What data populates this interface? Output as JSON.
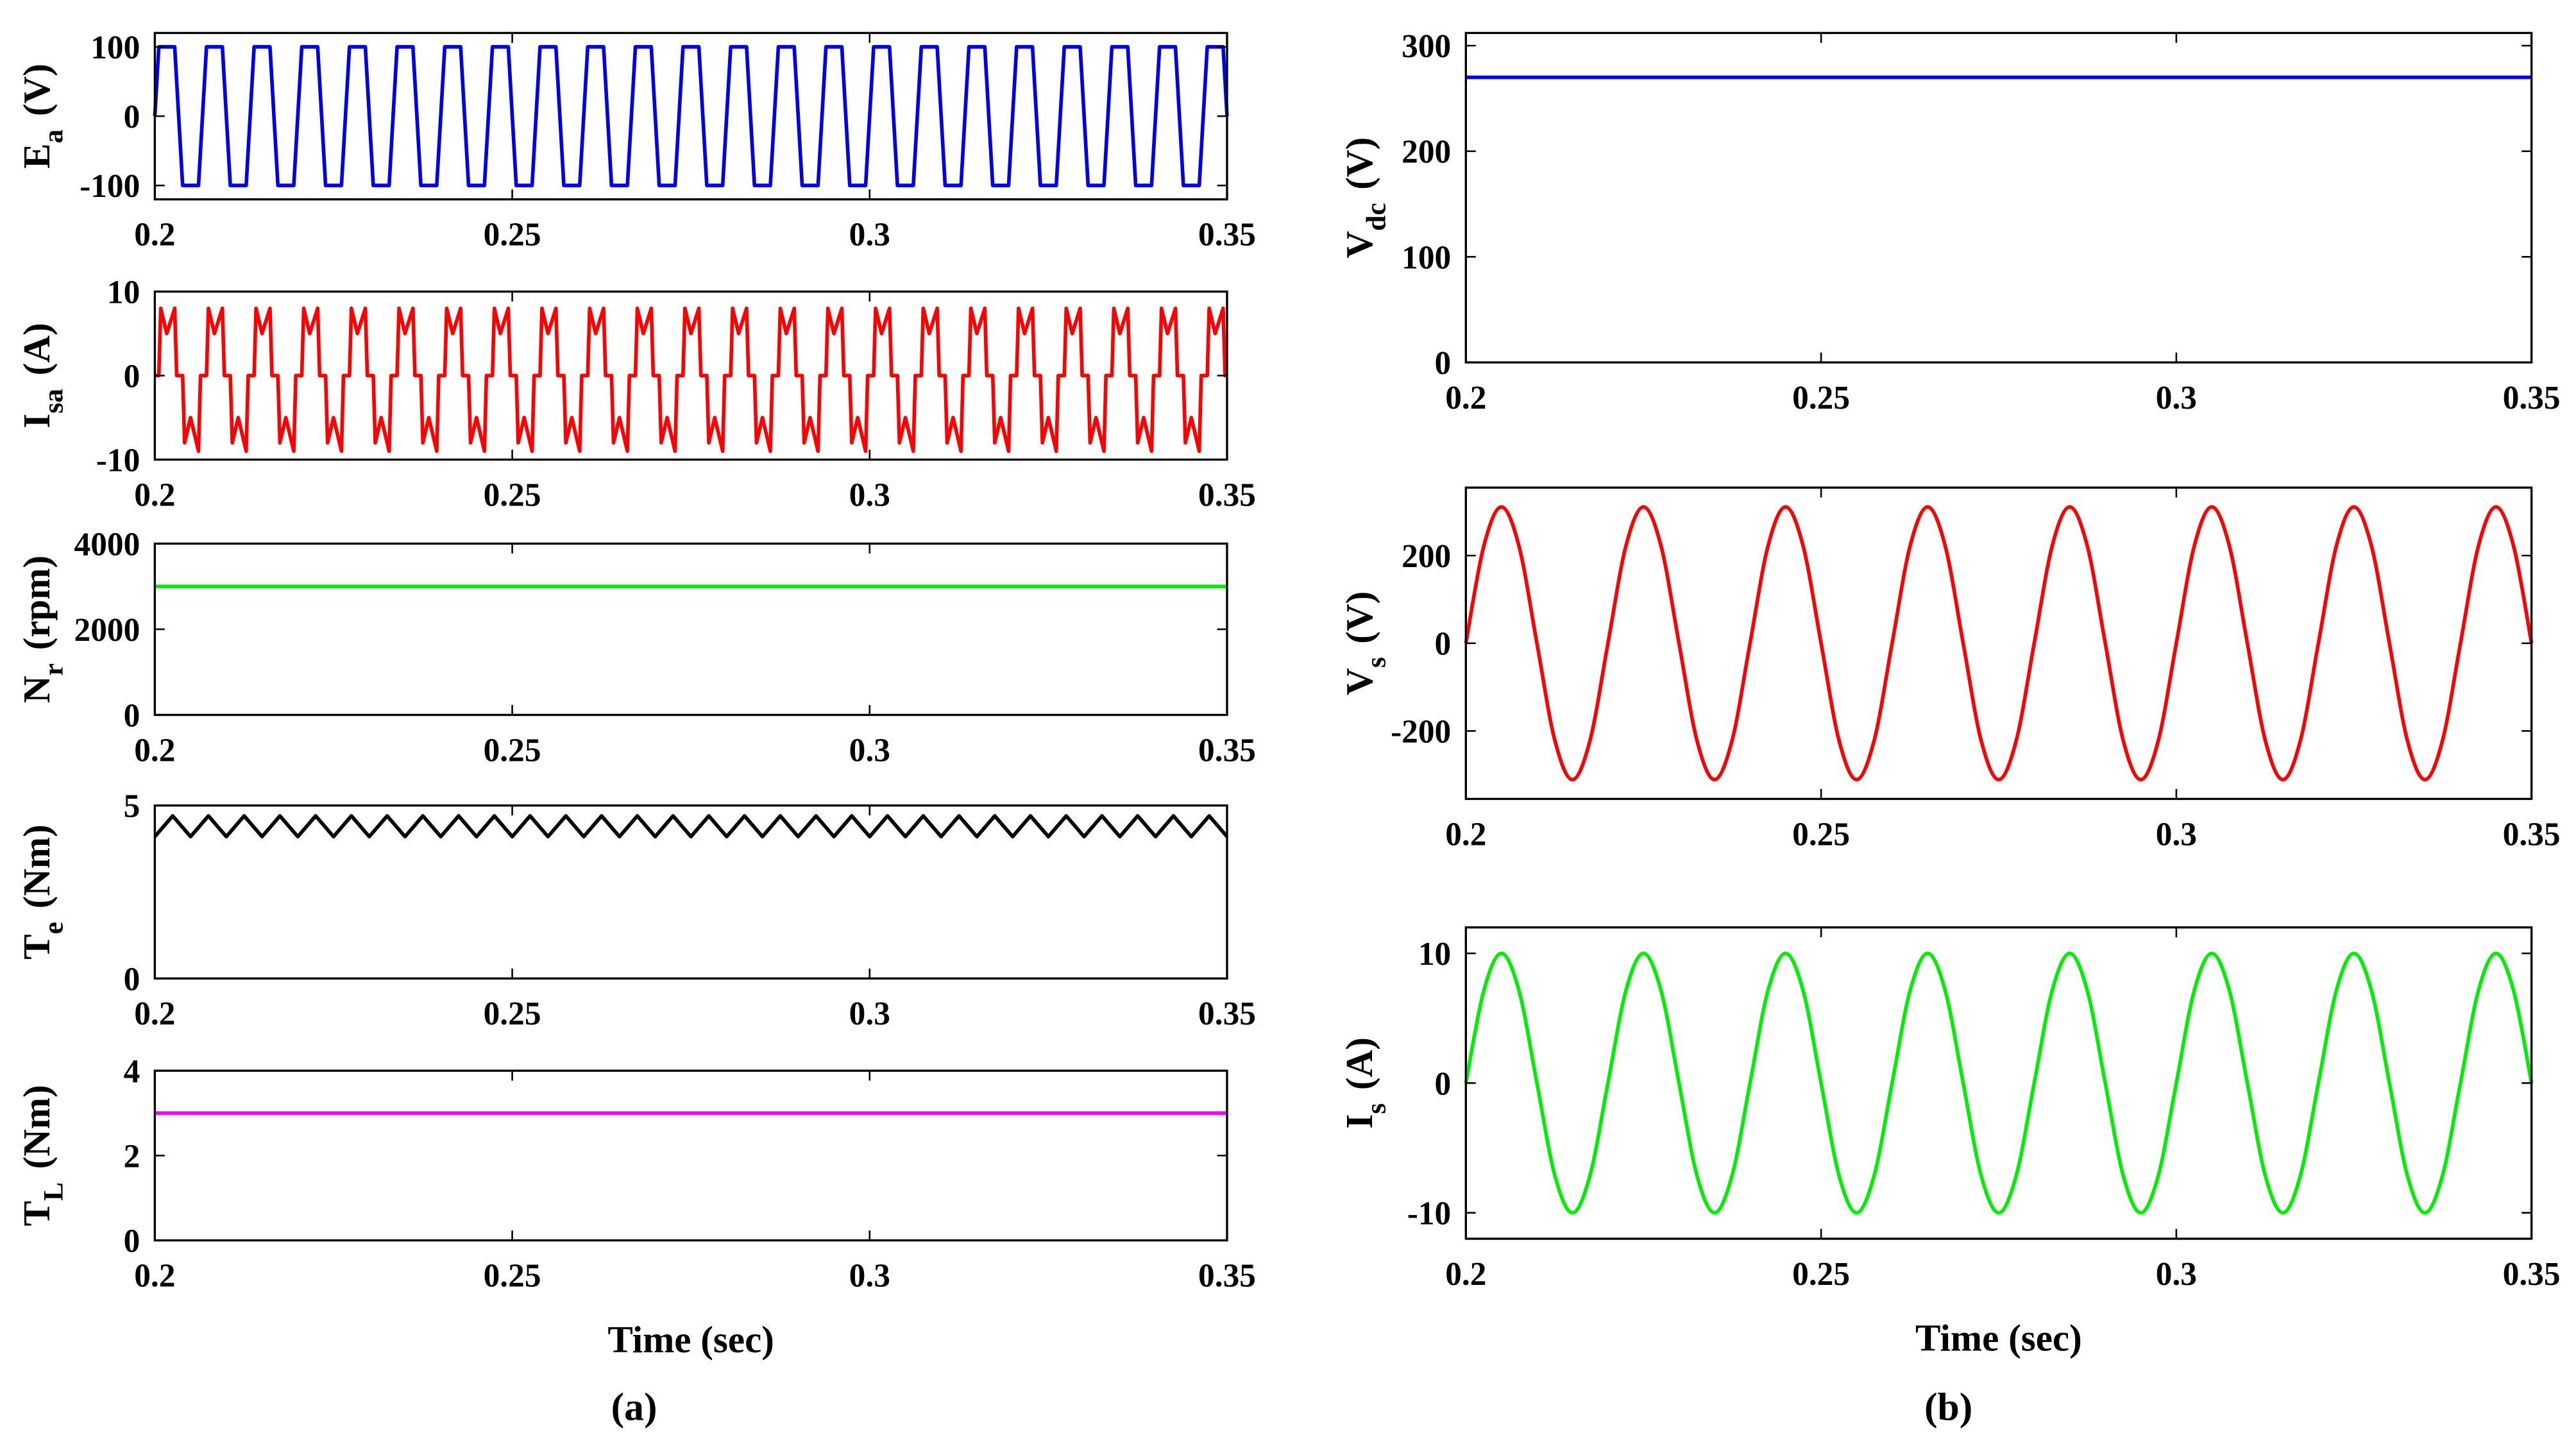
{
  "chart_data": [
    {
      "type": "line",
      "ylabel": {
        "main": "E",
        "sub": "a",
        "unit": "(V)"
      },
      "color": "#0000ee",
      "xlim": [
        0.2,
        0.35
      ],
      "xticks": [
        0.2,
        0.25,
        0.3,
        0.35
      ],
      "ylim": [
        -120,
        120
      ],
      "yticks": [
        -100,
        0,
        100
      ],
      "x": [
        0.2,
        0.20056,
        0.20278,
        0.20389,
        0.20611,
        0.20723,
        0.20945,
        0.21056,
        0.21278,
        0.21389,
        0.21611,
        0.21722,
        0.21944,
        0.22056,
        0.22278,
        0.22389,
        0.22611,
        0.22723,
        0.22945,
        0.23056,
        0.23278,
        0.23389,
        0.23611,
        0.23722,
        0.23944,
        0.24056,
        0.24278,
        0.24389,
        0.24611,
        0.24723,
        0.24945,
        0.25056,
        0.25278,
        0.25389,
        0.25611,
        0.25722,
        0.25944,
        0.26056,
        0.26278,
        0.26389,
        0.26611,
        0.26723,
        0.26945,
        0.27056,
        0.27278,
        0.27389,
        0.27611,
        0.27722,
        0.27944,
        0.28056,
        0.28278,
        0.28389,
        0.28611,
        0.28723,
        0.28945,
        0.29056,
        0.29278,
        0.29389,
        0.29611,
        0.29722,
        0.29944,
        0.30056,
        0.30278,
        0.30389,
        0.30611,
        0.30723,
        0.30945,
        0.31056,
        0.31278,
        0.31389,
        0.31611,
        0.31722,
        0.31944,
        0.32056,
        0.32278,
        0.32389,
        0.32611,
        0.32723,
        0.32945,
        0.33056,
        0.33278,
        0.33389,
        0.33611,
        0.33722,
        0.33944,
        0.34056,
        0.34278,
        0.34389,
        0.34611,
        0.34723,
        0.34945,
        0.35
      ],
      "values": [
        0,
        100,
        100,
        -100,
        -100,
        100,
        100,
        -100,
        -100,
        100,
        100,
        -100,
        -100,
        100,
        100,
        -100,
        -100,
        100,
        100,
        -100,
        -100,
        100,
        100,
        -100,
        -100,
        100,
        100,
        -100,
        -100,
        100,
        100,
        -100,
        -100,
        100,
        100,
        -100,
        -100,
        100,
        100,
        -100,
        -100,
        100,
        100,
        -100,
        -100,
        100,
        100,
        -100,
        -100,
        100,
        100,
        -100,
        -100,
        100,
        100,
        -100,
        -100,
        100,
        100,
        -100,
        -100,
        100,
        100,
        -100,
        -100,
        100,
        100,
        -100,
        -100,
        100,
        100,
        -100,
        -100,
        100,
        100,
        -100,
        -100,
        100,
        100,
        -100,
        -100,
        100,
        100,
        -100,
        -100,
        100,
        100,
        -100,
        -100,
        100,
        100,
        0
      ]
    },
    {
      "type": "line",
      "ylabel": {
        "main": "I",
        "sub": "sa",
        "unit": "(A)"
      },
      "color": "#ff0000",
      "xlim": [
        0.2,
        0.35
      ],
      "xticks": [
        0.2,
        0.25,
        0.3,
        0.35
      ],
      "ylim": [
        -10,
        10
      ],
      "yticks": [
        -10,
        0,
        10
      ],
      "x": [
        0.2,
        0.20056,
        0.20083,
        0.20167,
        0.20278,
        0.20306,
        0.20389,
        0.20417,
        0.205,
        0.20611,
        0.20639,
        0.20723,
        0.2075,
        0.20834,
        0.20945,
        0.20973,
        0.21056,
        0.21084,
        0.21167,
        0.21278,
        0.21306,
        0.21389,
        0.21416,
        0.215,
        0.21611,
        0.21639,
        0.21722,
        0.2175,
        0.21833,
        0.21944,
        0.21972,
        0.22056,
        0.22083,
        0.22167,
        0.22278,
        0.22306,
        0.22389,
        0.22417,
        0.225,
        0.22611,
        0.22639,
        0.22723,
        0.2275,
        0.22834,
        0.22945,
        0.22973,
        0.23056,
        0.23084,
        0.23167,
        0.23278,
        0.23306,
        0.23389,
        0.23416,
        0.235,
        0.23611,
        0.23639,
        0.23722,
        0.2375,
        0.23833,
        0.23944,
        0.23972,
        0.24056,
        0.24083,
        0.24167,
        0.24278,
        0.24306,
        0.24389,
        0.24417,
        0.245,
        0.24611,
        0.24639,
        0.24723,
        0.2475,
        0.24834,
        0.24945,
        0.24973,
        0.25056,
        0.25084,
        0.25167,
        0.25278,
        0.25306,
        0.25389,
        0.25416,
        0.255,
        0.25611,
        0.25639,
        0.25722,
        0.2575,
        0.25833,
        0.25944,
        0.25972,
        0.26056,
        0.26083,
        0.26167,
        0.26278,
        0.26306,
        0.26389,
        0.26417,
        0.265,
        0.26611,
        0.26639,
        0.26723,
        0.2675,
        0.26834,
        0.26945,
        0.26973,
        0.27056,
        0.27084,
        0.27167,
        0.27278,
        0.27306,
        0.27389,
        0.27416,
        0.275,
        0.27611,
        0.27639,
        0.27722,
        0.2775,
        0.27833,
        0.27944,
        0.27972,
        0.28056,
        0.28083,
        0.28167,
        0.28278,
        0.28306,
        0.28389,
        0.28417,
        0.285,
        0.28611,
        0.28639,
        0.28723,
        0.2875,
        0.28834,
        0.28945,
        0.28973,
        0.29056,
        0.29084,
        0.29167,
        0.29278,
        0.29306,
        0.29389,
        0.29416,
        0.295,
        0.29611,
        0.29639,
        0.29722,
        0.2975,
        0.29833,
        0.29944,
        0.29972,
        0.30056,
        0.30083,
        0.30167,
        0.30278,
        0.30306,
        0.30389,
        0.30417,
        0.305,
        0.30611,
        0.30639,
        0.30723,
        0.3075,
        0.30834,
        0.30945,
        0.30973,
        0.31056,
        0.31084,
        0.31167,
        0.31278,
        0.31306,
        0.31389,
        0.31416,
        0.315,
        0.31611,
        0.31639,
        0.31722,
        0.3175,
        0.31833,
        0.31944,
        0.31972,
        0.32056,
        0.32083,
        0.32167,
        0.32278,
        0.32306,
        0.32389,
        0.32417,
        0.325,
        0.32611,
        0.32639,
        0.32723,
        0.3275,
        0.32834,
        0.32945,
        0.32973,
        0.33056,
        0.33084,
        0.33167,
        0.33278,
        0.33306,
        0.33389,
        0.33416,
        0.335,
        0.33611,
        0.33639,
        0.33722,
        0.3375,
        0.33833,
        0.33944,
        0.33972,
        0.34056,
        0.34083,
        0.34167,
        0.34278,
        0.34306,
        0.34389,
        0.34417,
        0.345,
        0.34611,
        0.34639,
        0.34723,
        0.3475,
        0.34834,
        0.34945,
        0.34973,
        0.35
      ],
      "values": [
        0,
        0,
        8,
        5,
        8,
        0,
        0,
        -8,
        -5,
        -9,
        0,
        0,
        8,
        5,
        8,
        0,
        0,
        -8,
        -5,
        -9,
        0,
        0,
        8,
        5,
        8,
        0,
        0,
        -8,
        -5,
        -9,
        0,
        0,
        8,
        5,
        8,
        0,
        0,
        -8,
        -5,
        -9,
        0,
        0,
        8,
        5,
        8,
        0,
        0,
        -8,
        -5,
        -9,
        0,
        0,
        8,
        5,
        8,
        0,
        0,
        -8,
        -5,
        -9,
        0,
        0,
        8,
        5,
        8,
        0,
        0,
        -8,
        -5,
        -9,
        0,
        0,
        8,
        5,
        8,
        0,
        0,
        -8,
        -5,
        -9,
        0,
        0,
        8,
        5,
        8,
        0,
        0,
        -8,
        -5,
        -9,
        0,
        0,
        8,
        5,
        8,
        0,
        0,
        -8,
        -5,
        -9,
        0,
        0,
        8,
        5,
        8,
        0,
        0,
        -8,
        -5,
        -9,
        0,
        0,
        8,
        5,
        8,
        0,
        0,
        -8,
        -5,
        -9,
        0,
        0,
        8,
        5,
        8,
        0,
        0,
        -8,
        -5,
        -9,
        0,
        0,
        8,
        5,
        8,
        0,
        0,
        -8,
        -5,
        -9,
        0,
        0,
        8,
        5,
        8,
        0,
        0,
        -8,
        -5,
        -9,
        0,
        0,
        8,
        5,
        8,
        0,
        0,
        -8,
        -5,
        -9,
        0,
        0,
        8,
        5,
        8,
        0,
        0,
        -8,
        -5,
        -9,
        0,
        0,
        8,
        5,
        8,
        0,
        0,
        -8,
        -5,
        -9,
        0,
        0,
        8,
        5,
        8,
        0,
        0,
        -8,
        -5,
        -9,
        0,
        0,
        8,
        5,
        8,
        0,
        0,
        -8,
        -5,
        -9,
        0,
        0,
        8,
        5,
        8,
        0,
        0,
        -8,
        -5,
        -9,
        0,
        0,
        8,
        5,
        8,
        0,
        0,
        -8,
        -5,
        -9,
        0,
        0,
        8,
        5,
        8,
        0,
        0
      ]
    },
    {
      "type": "line",
      "ylabel": {
        "main": "N",
        "sub": "r",
        "unit": "(rpm)"
      },
      "color": "#00ee00",
      "xlim": [
        0.2,
        0.35
      ],
      "xticks": [
        0.2,
        0.25,
        0.3,
        0.35
      ],
      "ylim": [
        0,
        4000
      ],
      "yticks": [
        0,
        2000,
        4000
      ],
      "x": [
        0.2,
        0.35
      ],
      "values": [
        3000,
        3000
      ]
    },
    {
      "type": "line",
      "ylabel": {
        "main": "T",
        "sub": "e",
        "unit": "(Nm)"
      },
      "color": "#000000",
      "xlim": [
        0.2,
        0.35
      ],
      "xticks": [
        0.2,
        0.25,
        0.3,
        0.35
      ],
      "ylim": [
        0,
        5
      ],
      "yticks": [
        0,
        5
      ],
      "x": [
        0.2,
        0.2025,
        0.205,
        0.2075,
        0.21,
        0.2125,
        0.215,
        0.2175,
        0.22,
        0.2225,
        0.225,
        0.2275,
        0.23,
        0.2325,
        0.235,
        0.2375,
        0.24,
        0.2425,
        0.245,
        0.2475,
        0.25,
        0.2525,
        0.255,
        0.2575,
        0.26,
        0.2625,
        0.265,
        0.2675,
        0.27,
        0.2725,
        0.275,
        0.2775,
        0.28,
        0.2825,
        0.285,
        0.2875,
        0.29,
        0.2925,
        0.295,
        0.2975,
        0.3,
        0.3025,
        0.305,
        0.3075,
        0.31,
        0.3125,
        0.315,
        0.3175,
        0.32,
        0.3225,
        0.325,
        0.3275,
        0.33,
        0.3325,
        0.335,
        0.3375,
        0.34,
        0.3425,
        0.345,
        0.3475,
        0.35
      ],
      "values": [
        4.1,
        4.7,
        4.1,
        4.7,
        4.1,
        4.7,
        4.1,
        4.7,
        4.1,
        4.7,
        4.1,
        4.7,
        4.1,
        4.7,
        4.1,
        4.7,
        4.1,
        4.7,
        4.1,
        4.7,
        4.1,
        4.7,
        4.1,
        4.7,
        4.1,
        4.7,
        4.1,
        4.7,
        4.1,
        4.7,
        4.1,
        4.7,
        4.1,
        4.7,
        4.1,
        4.7,
        4.1,
        4.7,
        4.1,
        4.7,
        4.1,
        4.7,
        4.1,
        4.7,
        4.1,
        4.7,
        4.1,
        4.7,
        4.1,
        4.7,
        4.1,
        4.7,
        4.1,
        4.7,
        4.1,
        4.7,
        4.1,
        4.7,
        4.1,
        4.7,
        4.1
      ]
    },
    {
      "type": "line",
      "ylabel": {
        "main": "T",
        "sub": "L",
        "unit": "(Nm)"
      },
      "color": "#ff00ff",
      "xlabel": "Time (sec)",
      "xlim": [
        0.2,
        0.35
      ],
      "xticks": [
        0.2,
        0.25,
        0.3,
        0.35
      ],
      "ylim": [
        0,
        4
      ],
      "yticks": [
        0,
        2,
        4
      ],
      "x": [
        0.2,
        0.35
      ],
      "values": [
        3,
        3
      ]
    },
    {
      "type": "line",
      "ylabel": {
        "main": "V",
        "sub": "dc",
        "unit": "(V)"
      },
      "color": "#0000ee",
      "xlim": [
        0.2,
        0.35
      ],
      "xticks": [
        0.2,
        0.25,
        0.3,
        0.35
      ],
      "ylim": [
        0,
        312
      ],
      "yticks": [
        0,
        100,
        200,
        300
      ],
      "x": [
        0.2,
        0.35
      ],
      "values": [
        270,
        270
      ]
    },
    {
      "type": "line",
      "ylabel": {
        "main": "V",
        "sub": "s",
        "unit": "(V)"
      },
      "color": "#ff0000",
      "curve": "smooth",
      "xlim": [
        0.2,
        0.35
      ],
      "xticks": [
        0.2,
        0.25,
        0.3,
        0.35
      ],
      "ylim": [
        -355,
        355
      ],
      "yticks": [
        -200,
        0,
        200
      ],
      "x": [
        0.2,
        0.2025,
        0.205,
        0.2075,
        0.21,
        0.2125,
        0.215,
        0.2175,
        0.22,
        0.2225,
        0.225,
        0.2275,
        0.23,
        0.2325,
        0.235,
        0.2375,
        0.24,
        0.2425,
        0.245,
        0.2475,
        0.25,
        0.2525,
        0.255,
        0.2575,
        0.26,
        0.2625,
        0.265,
        0.2675,
        0.27,
        0.2725,
        0.275,
        0.2775,
        0.28,
        0.2825,
        0.285,
        0.2875,
        0.29,
        0.2925,
        0.295,
        0.2975,
        0.3,
        0.3025,
        0.305,
        0.3075,
        0.31,
        0.3125,
        0.315,
        0.3175,
        0.32,
        0.3225,
        0.325,
        0.3275,
        0.33,
        0.3325,
        0.335,
        0.3375,
        0.34,
        0.3425,
        0.345,
        0.3475,
        0.35
      ],
      "values": [
        0,
        220,
        311,
        220,
        0,
        -220,
        -311,
        -220,
        0,
        220,
        311,
        220,
        0,
        -220,
        -311,
        -220,
        0,
        220,
        311,
        220,
        0,
        -220,
        -311,
        -220,
        0,
        220,
        311,
        220,
        0,
        -220,
        -311,
        -220,
        0,
        220,
        311,
        220,
        0,
        -220,
        -311,
        -220,
        0,
        220,
        311,
        220,
        0,
        -220,
        -311,
        -220,
        0,
        220,
        311,
        220,
        0,
        -220,
        -311,
        -220,
        0,
        220,
        311,
        220,
        0
      ]
    },
    {
      "type": "line",
      "ylabel": {
        "main": "I",
        "sub": "s",
        "unit": "(A)"
      },
      "color": "#00ee00",
      "curve": "smooth",
      "xlabel": "Time (sec)",
      "xlim": [
        0.2,
        0.35
      ],
      "xticks": [
        0.2,
        0.25,
        0.3,
        0.35
      ],
      "ylim": [
        -12,
        12
      ],
      "yticks": [
        -10,
        0,
        10
      ],
      "x": [
        0.2,
        0.2025,
        0.205,
        0.2075,
        0.21,
        0.2125,
        0.215,
        0.2175,
        0.22,
        0.2225,
        0.225,
        0.2275,
        0.23,
        0.2325,
        0.235,
        0.2375,
        0.24,
        0.2425,
        0.245,
        0.2475,
        0.25,
        0.2525,
        0.255,
        0.2575,
        0.26,
        0.2625,
        0.265,
        0.2675,
        0.27,
        0.2725,
        0.275,
        0.2775,
        0.28,
        0.2825,
        0.285,
        0.2875,
        0.29,
        0.2925,
        0.295,
        0.2975,
        0.3,
        0.3025,
        0.305,
        0.3075,
        0.31,
        0.3125,
        0.315,
        0.3175,
        0.32,
        0.3225,
        0.325,
        0.3275,
        0.33,
        0.3325,
        0.335,
        0.3375,
        0.34,
        0.3425,
        0.345,
        0.3475,
        0.35
      ],
      "values": [
        0,
        7.07,
        10,
        7.07,
        0,
        -7.07,
        -10,
        -7.07,
        0,
        7.07,
        10,
        7.07,
        0,
        -7.07,
        -10,
        -7.07,
        0,
        7.07,
        10,
        7.07,
        0,
        -7.07,
        -10,
        -7.07,
        0,
        7.07,
        10,
        7.07,
        0,
        -7.07,
        -10,
        -7.07,
        0,
        7.07,
        10,
        7.07,
        0,
        -7.07,
        -10,
        -7.07,
        0,
        7.07,
        10,
        7.07,
        0,
        -7.07,
        -10,
        -7.07,
        0,
        7.07,
        10,
        7.07,
        0,
        -7.07,
        -10,
        -7.07,
        0,
        7.07,
        10,
        7.07,
        0
      ]
    }
  ],
  "captions": [
    "(a)",
    "(b)"
  ]
}
